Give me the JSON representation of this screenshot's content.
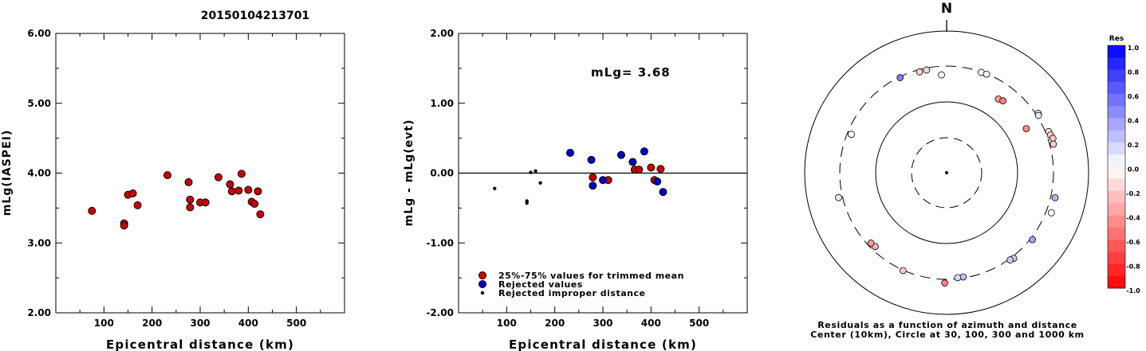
{
  "figure_title": "20150104213701",
  "chart_data": [
    {
      "type": "scatter",
      "xlabel": "Epicentral distance (km)",
      "ylabel": "mLg(IASPEI)",
      "xlim": [
        0,
        600
      ],
      "ylim": [
        2.0,
        6.0
      ],
      "x_ticks": [
        "100",
        "200",
        "300",
        "400",
        "500"
      ],
      "y_ticks": [
        "2.00",
        "3.00",
        "4.00",
        "5.00",
        "6.00"
      ],
      "series": [
        {
          "color": "#cc0000",
          "points": [
            [
              75,
              3.46
            ],
            [
              142,
              3.28
            ],
            [
              142,
              3.25
            ],
            [
              150,
              3.69
            ],
            [
              160,
              3.71
            ],
            [
              170,
              3.54
            ],
            [
              232,
              3.97
            ],
            [
              276,
              3.87
            ],
            [
              279,
              3.62
            ],
            [
              279,
              3.51
            ],
            [
              300,
              3.58
            ],
            [
              311,
              3.58
            ],
            [
              338,
              3.94
            ],
            [
              362,
              3.84
            ],
            [
              366,
              3.74
            ],
            [
              380,
              3.75
            ],
            [
              386,
              3.99
            ],
            [
              400,
              3.76
            ],
            [
              407,
              3.59
            ],
            [
              413,
              3.56
            ],
            [
              420,
              3.74
            ],
            [
              425,
              3.41
            ]
          ]
        }
      ]
    },
    {
      "type": "scatter",
      "xlabel": "Epicentral distance (km)",
      "ylabel": "mLg - mLg(evt)",
      "xlim": [
        0,
        600
      ],
      "ylim": [
        -2.0,
        2.0
      ],
      "x_ticks": [
        "100",
        "200",
        "300",
        "400",
        "500"
      ],
      "y_ticks": [
        "-2.00",
        "-1.00",
        "0.00",
        "1.00",
        "2.00"
      ],
      "annotation": "mLg= 3.68",
      "reference_line": 0.0,
      "legend": [
        {
          "label": "25%-75% values for trimmed mean",
          "color": "#cc0000"
        },
        {
          "label": "Rejected values",
          "color": "#0000cc"
        },
        {
          "label": "Rejected improper distance",
          "color": "#000000"
        }
      ],
      "series": [
        {
          "name": "25%-75% values for trimmed mean",
          "color": "#cc0000",
          "points": [
            [
              279,
              -0.06
            ],
            [
              311,
              -0.1
            ],
            [
              366,
              0.05
            ],
            [
              375,
              0.05
            ],
            [
              400,
              0.08
            ],
            [
              407,
              -0.1
            ],
            [
              420,
              0.06
            ]
          ]
        },
        {
          "name": "Rejected values",
          "color": "#0000cc",
          "points": [
            [
              232,
              0.29
            ],
            [
              276,
              0.19
            ],
            [
              279,
              -0.18
            ],
            [
              300,
              -0.1
            ],
            [
              338,
              0.26
            ],
            [
              362,
              0.16
            ],
            [
              386,
              0.31
            ],
            [
              413,
              -0.12
            ],
            [
              425,
              -0.27
            ]
          ]
        },
        {
          "name": "Rejected improper distance",
          "color": "#000000",
          "points": [
            [
              75,
              -0.22
            ],
            [
              142,
              -0.4
            ],
            [
              142,
              -0.43
            ],
            [
              150,
              0.01
            ],
            [
              160,
              0.03
            ],
            [
              170,
              -0.14
            ]
          ]
        }
      ]
    },
    {
      "type": "scatter",
      "north_label": "N",
      "caption_line1": "Residuals as a function of azimuth and distance",
      "caption_line2": "Center (10km), Circle at 30, 100, 300 and 1000 km",
      "colorbar_title": "Res",
      "colorbar_ticks": [
        "1.0",
        "0.8",
        "0.6",
        "0.4",
        "0.2",
        "0.0",
        "-0.2",
        "-0.4",
        "-0.6",
        "-0.8",
        "-1.0"
      ],
      "stations": [
        {
          "az": 19,
          "dist": 295,
          "res": 0.0
        },
        {
          "az": 22,
          "dist": 297,
          "res": 0.0
        },
        {
          "az": 349,
          "dist": 282,
          "res": -0.15
        },
        {
          "az": 345,
          "dist": 280,
          "res": -0.2
        },
        {
          "az": 334,
          "dist": 292,
          "res": 0.5
        },
        {
          "az": 357,
          "dist": 230,
          "res": 0.0
        },
        {
          "az": 35,
          "dist": 180,
          "res": -0.4
        },
        {
          "az": 38,
          "dist": 187,
          "res": -0.5
        },
        {
          "az": 57,
          "dist": 325,
          "res": 0.05
        },
        {
          "az": 58,
          "dist": 315,
          "res": 0.1
        },
        {
          "az": 61,
          "dist": 185,
          "res": -0.45
        },
        {
          "az": 68,
          "dist": 335,
          "res": -0.1
        },
        {
          "az": 70,
          "dist": 340,
          "res": -0.2
        },
        {
          "az": 72,
          "dist": 355,
          "res": -0.25
        },
        {
          "az": 75,
          "dist": 340,
          "res": -0.2
        },
        {
          "az": 103,
          "dist": 350,
          "res": 0.3
        },
        {
          "az": 111,
          "dist": 360,
          "res": 0.0
        },
        {
          "az": 128,
          "dist": 322,
          "res": 0.35
        },
        {
          "az": 142,
          "dist": 322,
          "res": 0.2
        },
        {
          "az": 144,
          "dist": 312,
          "res": 0.2
        },
        {
          "az": 171,
          "dist": 290,
          "res": 0.25
        },
        {
          "az": 174,
          "dist": 290,
          "res": 0.15
        },
        {
          "az": 181,
          "dist": 340,
          "res": -0.5
        },
        {
          "az": 204,
          "dist": 305,
          "res": -0.2
        },
        {
          "az": 224,
          "dist": 265,
          "res": -0.3
        },
        {
          "az": 227,
          "dist": 270,
          "res": -0.4
        },
        {
          "az": 257,
          "dist": 345,
          "res": 0.1
        },
        {
          "az": 292,
          "dist": 265,
          "res": 0.0
        }
      ]
    }
  ]
}
